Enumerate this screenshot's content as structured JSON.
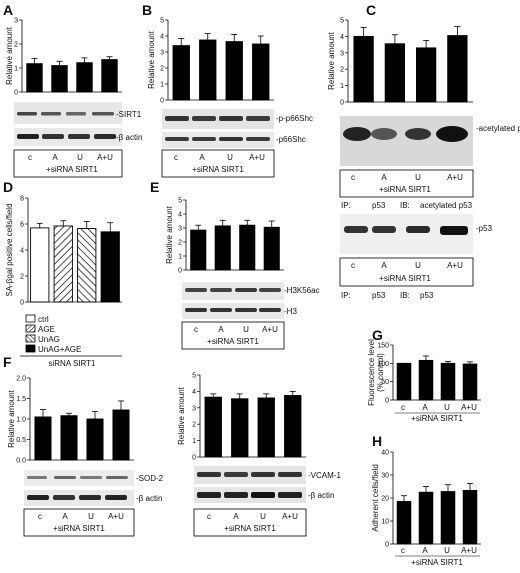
{
  "figure": {
    "siRNA_label": "+siRNA SIRT1",
    "lanes": [
      "c",
      "A",
      "U",
      "A+U"
    ]
  },
  "panels": {
    "A": {
      "label": "A",
      "blots": [
        "-SIRT1",
        "-β actin"
      ]
    },
    "B": {
      "label": "B",
      "blots": [
        "-p-p66Shc",
        "-p66Shc"
      ]
    },
    "C": {
      "label": "C",
      "blots": [
        "-acetylated p53",
        "-p53"
      ],
      "ip_row_1": [
        "IP:",
        "p53",
        "IB:",
        "acetylated p53"
      ],
      "ip_row_2": [
        "IP:",
        "p53",
        "IB:",
        "p53"
      ]
    },
    "D": {
      "label": "D",
      "legend": [
        "ctrl",
        "AGE",
        "UnAG",
        "UnAG+AGE"
      ],
      "group_label": "siRNA SIRT1"
    },
    "E": {
      "label": "E",
      "blots": [
        "-H3K56ac",
        "-H3"
      ]
    },
    "F": {
      "label": "F",
      "blots_left": [
        "-SOD-2",
        "-β actin"
      ],
      "blots_right": [
        "-VCAM-1",
        "-β actin"
      ]
    },
    "G": {
      "label": "G"
    },
    "H": {
      "label": "H"
    }
  },
  "chart_data": [
    {
      "id": "A",
      "type": "bar",
      "categories": [
        "c",
        "A",
        "U",
        "A+U"
      ],
      "values": [
        1.18,
        1.1,
        1.22,
        1.35
      ],
      "errors": [
        0.22,
        0.18,
        0.2,
        0.12
      ],
      "ylabel": "Relative amount",
      "ylim": [
        0,
        3
      ],
      "yticks": [
        0,
        1,
        2,
        3
      ]
    },
    {
      "id": "B",
      "type": "bar",
      "categories": [
        "c",
        "A",
        "U",
        "A+U"
      ],
      "values": [
        3.4,
        3.75,
        3.65,
        3.5
      ],
      "errors": [
        0.45,
        0.4,
        0.45,
        0.5
      ],
      "ylabel": "Relative amount",
      "ylim": [
        0,
        5
      ],
      "yticks": [
        0,
        1,
        2,
        3,
        4,
        5
      ]
    },
    {
      "id": "C",
      "type": "bar",
      "categories": [
        "c",
        "A",
        "U",
        "A+U"
      ],
      "values": [
        4.0,
        3.55,
        3.3,
        4.05
      ],
      "errors": [
        0.55,
        0.55,
        0.45,
        0.55
      ],
      "ylabel": "Relative amount",
      "ylim": [
        0,
        5
      ],
      "yticks": [
        0,
        1,
        2,
        3,
        4,
        5
      ]
    },
    {
      "id": "D",
      "type": "bar",
      "categories": [
        "ctrl",
        "AGE",
        "UnAG",
        "UnAG+AGE"
      ],
      "values": [
        5.7,
        5.85,
        5.65,
        5.4
      ],
      "errors": [
        0.35,
        0.4,
        0.55,
        0.7
      ],
      "ylabel": "SA-βgal positive cells/field",
      "ylim": [
        0,
        8
      ],
      "yticks": [
        0,
        2,
        4,
        6,
        8
      ]
    },
    {
      "id": "E",
      "type": "bar",
      "categories": [
        "c",
        "A",
        "U",
        "A+U"
      ],
      "values": [
        2.85,
        3.15,
        3.2,
        3.05
      ],
      "errors": [
        0.35,
        0.4,
        0.35,
        0.45
      ],
      "ylabel": "Relative amount",
      "ylim": [
        0,
        5
      ],
      "yticks": [
        0,
        1,
        2,
        3,
        4,
        5
      ]
    },
    {
      "id": "F1",
      "type": "bar",
      "categories": [
        "c",
        "A",
        "U",
        "A+U"
      ],
      "values": [
        1.05,
        1.08,
        1.0,
        1.22
      ],
      "errors": [
        0.18,
        0.06,
        0.18,
        0.22
      ],
      "ylabel": "Relative amount",
      "ylim": [
        0,
        2
      ],
      "yticks": [
        0.0,
        0.5,
        1.0,
        1.5,
        2.0
      ]
    },
    {
      "id": "F2",
      "type": "bar",
      "categories": [
        "c",
        "A",
        "U",
        "A+U"
      ],
      "values": [
        3.65,
        3.55,
        3.6,
        3.75
      ],
      "errors": [
        0.2,
        0.3,
        0.25,
        0.25
      ],
      "ylabel": "Relative amount",
      "ylim": [
        0,
        5
      ],
      "yticks": [
        0,
        1,
        2,
        3,
        4,
        5
      ]
    },
    {
      "id": "G",
      "type": "bar",
      "categories": [
        "c",
        "A",
        "U",
        "A+U"
      ],
      "values": [
        100,
        108,
        100,
        98
      ],
      "errors": [
        0,
        12,
        5,
        6
      ],
      "ylabel": "Fluorescence level (% control)",
      "ylim": [
        0,
        150
      ],
      "yticks": [
        0,
        50,
        100,
        150
      ]
    },
    {
      "id": "H",
      "type": "bar",
      "categories": [
        "c",
        "A",
        "U",
        "A+U"
      ],
      "values": [
        18.5,
        22.5,
        22.8,
        23.3
      ],
      "errors": [
        2.5,
        2.5,
        3.0,
        3.0
      ],
      "ylabel": "Adherent cells/field",
      "ylim": [
        0,
        40
      ],
      "yticks": [
        0,
        10,
        20,
        30,
        40
      ]
    }
  ]
}
